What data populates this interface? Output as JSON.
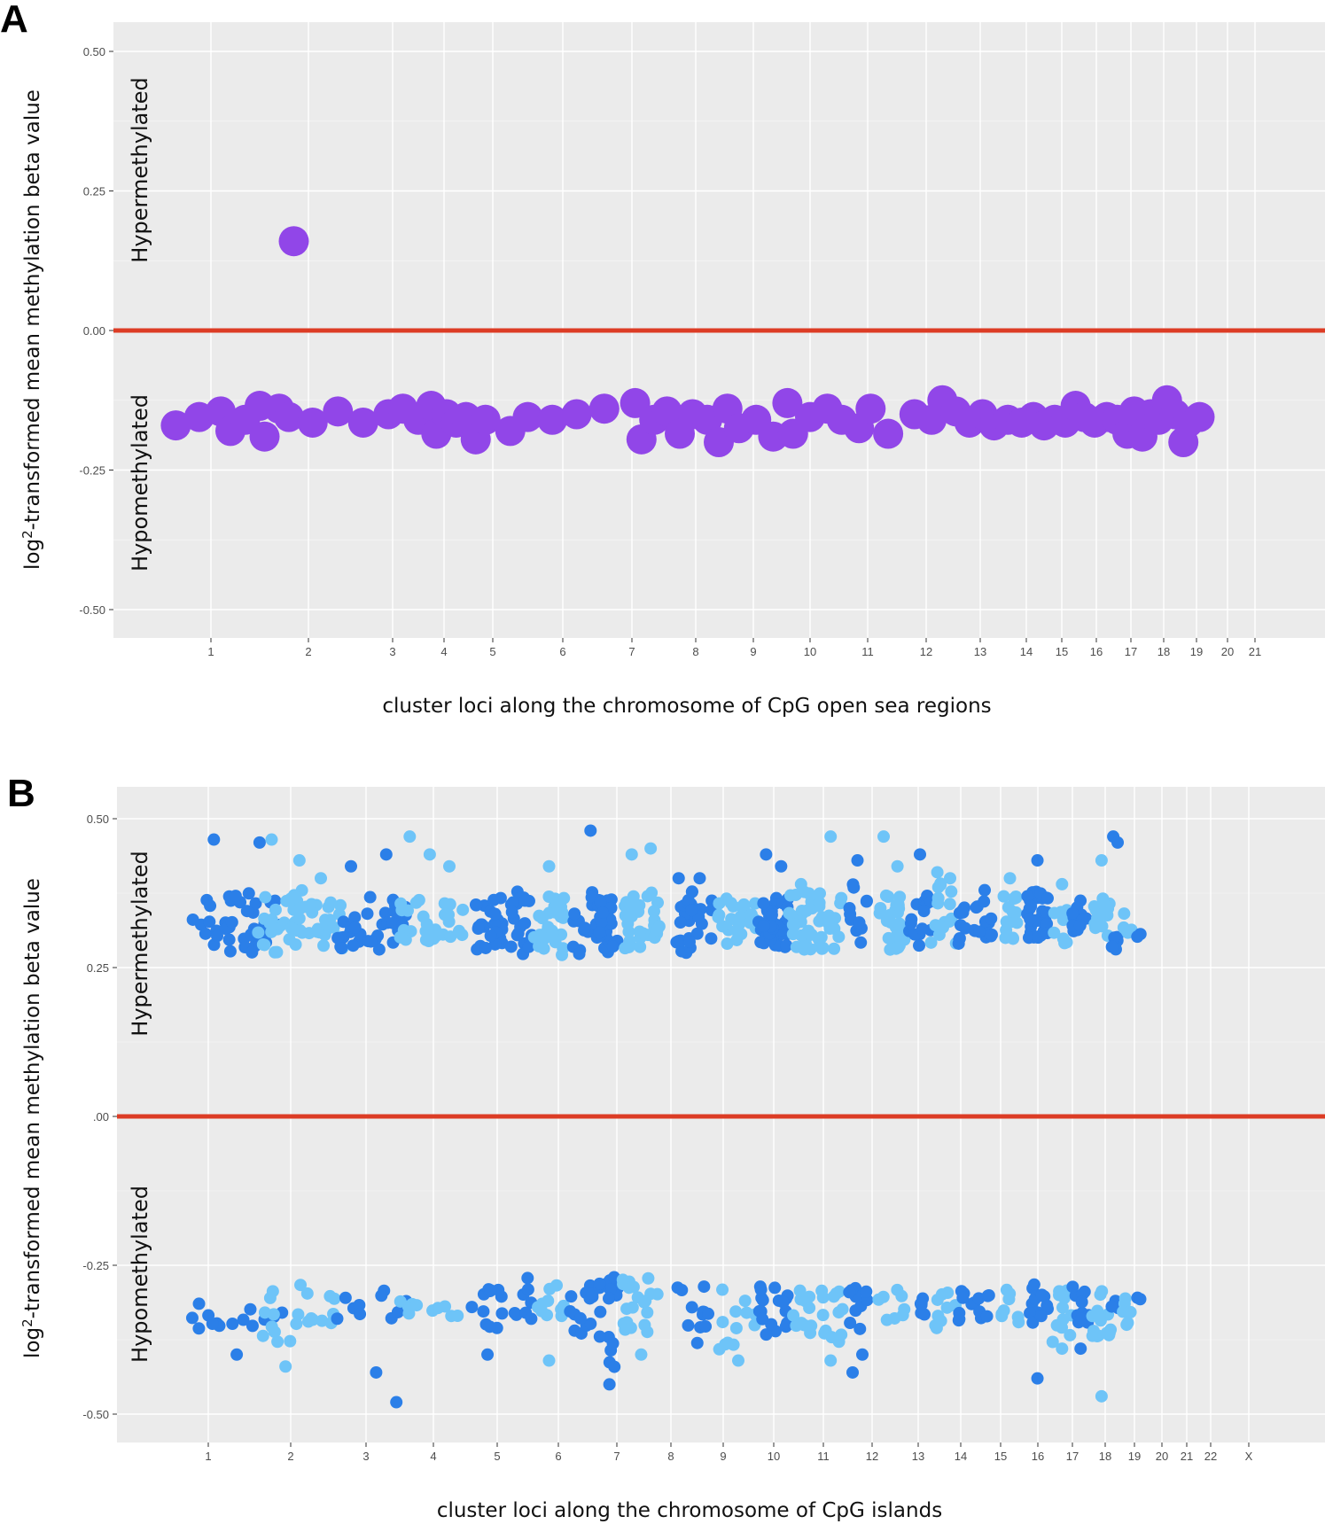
{
  "chart_data": [
    {
      "panel": "A",
      "type": "scatter",
      "xlabel": "cluster loci along the chromosome of CpG open sea regions",
      "ylabel_prefix": "log",
      "ylabel_sup": "2",
      "ylabel_rest": "-transformed mean methylation beta value",
      "ylim": [
        -0.57,
        0.55
      ],
      "yticks": [
        0.5,
        0.25,
        0.0,
        -0.25,
        -0.5
      ],
      "ytick_labels": [
        "0.50",
        "0.25",
        "0.00",
        "-0.25",
        "-0.50"
      ],
      "xticks": [
        "1",
        "2",
        "3",
        "4",
        "5",
        "6",
        "7",
        "8",
        "9",
        "10",
        "11",
        "12",
        "13",
        "14",
        "15",
        "16",
        "17",
        "18",
        "19",
        "20",
        "21"
      ],
      "region_labels": {
        "hyper": "Hypermethylated",
        "hypo": "Hypomethylated"
      },
      "reference_line": 0.0,
      "point_color": "#9146e8",
      "line_color": "#dc3c25",
      "points": [
        {
          "x": 1.85,
          "y": 0.16
        },
        {
          "x": 0.55,
          "y": -0.17
        },
        {
          "x": 0.85,
          "y": -0.155
        },
        {
          "x": 1.1,
          "y": -0.145
        },
        {
          "x": 1.2,
          "y": -0.18
        },
        {
          "x": 1.35,
          "y": -0.16
        },
        {
          "x": 1.5,
          "y": -0.135
        },
        {
          "x": 1.55,
          "y": -0.19
        },
        {
          "x": 1.7,
          "y": -0.14
        },
        {
          "x": 1.8,
          "y": -0.155
        },
        {
          "x": 2.05,
          "y": -0.165
        },
        {
          "x": 2.35,
          "y": -0.145
        },
        {
          "x": 2.65,
          "y": -0.165
        },
        {
          "x": 2.95,
          "y": -0.15
        },
        {
          "x": 3.2,
          "y": -0.14
        },
        {
          "x": 3.5,
          "y": -0.16
        },
        {
          "x": 3.75,
          "y": -0.135
        },
        {
          "x": 3.85,
          "y": -0.185
        },
        {
          "x": 4.05,
          "y": -0.15
        },
        {
          "x": 4.25,
          "y": -0.165
        },
        {
          "x": 4.45,
          "y": -0.155
        },
        {
          "x": 4.65,
          "y": -0.195
        },
        {
          "x": 4.85,
          "y": -0.16
        },
        {
          "x": 5.25,
          "y": -0.18
        },
        {
          "x": 5.5,
          "y": -0.155
        },
        {
          "x": 5.85,
          "y": -0.16
        },
        {
          "x": 6.2,
          "y": -0.15
        },
        {
          "x": 6.6,
          "y": -0.14
        },
        {
          "x": 7.05,
          "y": -0.13
        },
        {
          "x": 7.15,
          "y": -0.195
        },
        {
          "x": 7.35,
          "y": -0.16
        },
        {
          "x": 7.55,
          "y": -0.145
        },
        {
          "x": 7.75,
          "y": -0.185
        },
        {
          "x": 7.95,
          "y": -0.15
        },
        {
          "x": 8.2,
          "y": -0.16
        },
        {
          "x": 8.4,
          "y": -0.2
        },
        {
          "x": 8.55,
          "y": -0.14
        },
        {
          "x": 8.75,
          "y": -0.175
        },
        {
          "x": 9.05,
          "y": -0.16
        },
        {
          "x": 9.35,
          "y": -0.19
        },
        {
          "x": 9.6,
          "y": -0.13
        },
        {
          "x": 9.7,
          "y": -0.185
        },
        {
          "x": 10.0,
          "y": -0.155
        },
        {
          "x": 10.3,
          "y": -0.14
        },
        {
          "x": 10.55,
          "y": -0.16
        },
        {
          "x": 10.85,
          "y": -0.175
        },
        {
          "x": 11.05,
          "y": -0.14
        },
        {
          "x": 11.35,
          "y": -0.185
        },
        {
          "x": 11.8,
          "y": -0.15
        },
        {
          "x": 12.1,
          "y": -0.16
        },
        {
          "x": 12.3,
          "y": -0.125
        },
        {
          "x": 12.55,
          "y": -0.145
        },
        {
          "x": 12.8,
          "y": -0.165
        },
        {
          "x": 13.05,
          "y": -0.15
        },
        {
          "x": 13.3,
          "y": -0.17
        },
        {
          "x": 13.6,
          "y": -0.16
        },
        {
          "x": 13.9,
          "y": -0.165
        },
        {
          "x": 14.2,
          "y": -0.155
        },
        {
          "x": 14.5,
          "y": -0.17
        },
        {
          "x": 14.8,
          "y": -0.16
        },
        {
          "x": 15.1,
          "y": -0.165
        },
        {
          "x": 15.4,
          "y": -0.135
        },
        {
          "x": 15.65,
          "y": -0.155
        },
        {
          "x": 15.95,
          "y": -0.165
        },
        {
          "x": 16.3,
          "y": -0.155
        },
        {
          "x": 16.6,
          "y": -0.16
        },
        {
          "x": 16.9,
          "y": -0.185
        },
        {
          "x": 17.1,
          "y": -0.145
        },
        {
          "x": 17.35,
          "y": -0.19
        },
        {
          "x": 17.6,
          "y": -0.15
        },
        {
          "x": 17.85,
          "y": -0.16
        },
        {
          "x": 18.1,
          "y": -0.125
        },
        {
          "x": 18.35,
          "y": -0.15
        },
        {
          "x": 18.6,
          "y": -0.2
        },
        {
          "x": 18.75,
          "y": -0.165
        },
        {
          "x": 19.1,
          "y": -0.155
        }
      ]
    },
    {
      "panel": "B",
      "type": "scatter",
      "xlabel": "cluster loci along the chromosome of CpG islands",
      "ylabel_prefix": "log",
      "ylabel_sup": "2",
      "ylabel_rest": "-transformed mean methylation beta value",
      "ylim": [
        -0.55,
        0.55
      ],
      "yticks": [
        0.5,
        0.25,
        0.0,
        -0.25,
        -0.5
      ],
      "ytick_labels": [
        "0.50",
        "0.25",
        ".00",
        "-0.25",
        "-0.50"
      ],
      "xticks": [
        "1",
        "2",
        "3",
        "4",
        "5",
        "6",
        "7",
        "8",
        "9",
        "10",
        "11",
        "12",
        "13",
        "14",
        "15",
        "16",
        "17",
        "18",
        "19",
        "20",
        "21",
        "22",
        "X"
      ],
      "region_labels": {
        "hyper": "Hypermethylated",
        "hypo": "Hypomethylated"
      },
      "reference_line": 0.0,
      "series_colors": [
        "#2b7fe8",
        "#6ec4f8"
      ],
      "line_color": "#dc3c25",
      "clusters": [
        {
          "x": 0.7,
          "width": 1.2,
          "color": 0,
          "hyper": [
            0.275,
            0.375
          ],
          "hypo": [
            -0.3,
            -0.36
          ],
          "nHyper": 42,
          "nHypo": 14,
          "outHyper": [
            0.465,
            0.46
          ],
          "outHypo": [
            -0.4
          ]
        },
        {
          "x": 1.6,
          "width": 0.7,
          "color": 1,
          "hyper": [
            0.275,
            0.38
          ],
          "hypo": [
            -0.28,
            -0.38
          ],
          "nHyper": 30,
          "nHypo": 12,
          "outHyper": [
            0.465,
            0.43
          ],
          "outHypo": [
            -0.42
          ]
        },
        {
          "x": 2.1,
          "width": 0.6,
          "color": 1,
          "hyper": [
            0.28,
            0.36
          ],
          "hypo": [
            -0.29,
            -0.35
          ],
          "nHyper": 22,
          "nHypo": 10,
          "outHyper": [
            0.4
          ],
          "outHypo": []
        },
        {
          "x": 2.6,
          "width": 0.4,
          "color": 0,
          "hyper": [
            0.28,
            0.34
          ],
          "hypo": [
            -0.3,
            -0.34
          ],
          "nHyper": 12,
          "nHypo": 5,
          "outHyper": [
            0.42
          ],
          "outHypo": []
        },
        {
          "x": 3.0,
          "width": 0.6,
          "color": 0,
          "hyper": [
            0.28,
            0.37
          ],
          "hypo": [
            -0.29,
            -0.34
          ],
          "nHyper": 22,
          "nHypo": 6,
          "outHyper": [
            0.44
          ],
          "outHypo": [
            -0.43,
            -0.48
          ]
        },
        {
          "x": 3.5,
          "width": 0.6,
          "color": 1,
          "hyper": [
            0.29,
            0.37
          ],
          "hypo": [
            -0.3,
            -0.34
          ],
          "nHyper": 16,
          "nHypo": 6,
          "outHyper": [
            0.47,
            0.44
          ],
          "outHypo": []
        },
        {
          "x": 4.0,
          "width": 0.5,
          "color": 1,
          "hyper": [
            0.3,
            0.36
          ],
          "hypo": [
            -0.3,
            -0.34
          ],
          "nHyper": 12,
          "nHypo": 4,
          "outHyper": [
            0.42
          ],
          "outHypo": []
        },
        {
          "x": 4.6,
          "width": 0.5,
          "color": 0,
          "hyper": [
            0.28,
            0.37
          ],
          "hypo": [
            -0.29,
            -0.37
          ],
          "nHyper": 26,
          "nHypo": 12,
          "outHyper": [],
          "outHypo": [
            -0.4
          ]
        },
        {
          "x": 5.2,
          "width": 0.4,
          "color": 0,
          "hyper": [
            0.27,
            0.38
          ],
          "hypo": [
            -0.27,
            -0.34
          ],
          "nHyper": 20,
          "nHypo": 8,
          "outHyper": [],
          "outHypo": []
        },
        {
          "x": 5.6,
          "width": 0.5,
          "color": 1,
          "hyper": [
            0.27,
            0.37
          ],
          "hypo": [
            -0.28,
            -0.34
          ],
          "nHyper": 28,
          "nHypo": 10,
          "outHyper": [
            0.42
          ],
          "outHypo": [
            -0.41
          ]
        },
        {
          "x": 6.2,
          "width": 0.7,
          "color": 0,
          "hyper": [
            0.27,
            0.38
          ],
          "hypo": [
            -0.28,
            -0.38
          ],
          "nHyper": 32,
          "nHypo": 14,
          "outHyper": [
            0.48
          ],
          "outHypo": []
        },
        {
          "x": 6.7,
          "width": 0.35,
          "color": 0,
          "hyper": [
            0.28,
            0.37
          ],
          "hypo": [
            -0.27,
            -0.44
          ],
          "nHyper": 14,
          "nHypo": 16,
          "outHyper": [],
          "outHypo": [
            -0.45
          ]
        },
        {
          "x": 7.1,
          "width": 0.7,
          "color": 1,
          "hyper": [
            0.28,
            0.38
          ],
          "hypo": [
            -0.27,
            -0.37
          ],
          "nHyper": 34,
          "nHypo": 20,
          "outHyper": [
            0.44,
            0.45
          ],
          "outHypo": [
            -0.4
          ]
        },
        {
          "x": 7.9,
          "width": 0.5,
          "color": 0,
          "hyper": [
            0.27,
            0.36
          ],
          "hypo": [
            -0.28,
            -0.3
          ],
          "nHyper": 14,
          "nHypo": 2,
          "outHyper": [
            0.4
          ],
          "outHypo": []
        },
        {
          "x": 8.3,
          "width": 0.5,
          "color": 0,
          "hyper": [
            0.29,
            0.38
          ],
          "hypo": [
            -0.28,
            -0.39
          ],
          "nHyper": 14,
          "nHypo": 10,
          "outHyper": [
            0.4
          ],
          "outHypo": []
        },
        {
          "x": 8.9,
          "width": 0.8,
          "color": 1,
          "hyper": [
            0.29,
            0.37
          ],
          "hypo": [
            -0.28,
            -0.4
          ],
          "nHyper": 26,
          "nHypo": 12,
          "outHyper": [],
          "outHypo": [
            -0.41
          ]
        },
        {
          "x": 9.7,
          "width": 0.6,
          "color": 0,
          "hyper": [
            0.28,
            0.37
          ],
          "hypo": [
            -0.28,
            -0.37
          ],
          "nHyper": 36,
          "nHypo": 18,
          "outHyper": [
            0.44,
            0.42
          ],
          "outHypo": []
        },
        {
          "x": 10.3,
          "width": 0.5,
          "color": 1,
          "hyper": [
            0.28,
            0.38
          ],
          "hypo": [
            -0.29,
            -0.37
          ],
          "nHyper": 26,
          "nHypo": 12,
          "outHyper": [
            0.39
          ],
          "outHypo": []
        },
        {
          "x": 10.9,
          "width": 0.5,
          "color": 1,
          "hyper": [
            0.28,
            0.38
          ],
          "hypo": [
            -0.29,
            -0.38
          ],
          "nHyper": 22,
          "nHypo": 14,
          "outHyper": [
            0.47
          ],
          "outHypo": [
            -0.41
          ]
        },
        {
          "x": 11.5,
          "width": 0.4,
          "color": 0,
          "hyper": [
            0.28,
            0.39
          ],
          "hypo": [
            -0.28,
            -0.36
          ],
          "nHyper": 12,
          "nHypo": 10,
          "outHyper": [
            0.43
          ],
          "outHypo": [
            -0.43,
            -0.4
          ]
        },
        {
          "x": 12.1,
          "width": 0.6,
          "color": 1,
          "hyper": [
            0.28,
            0.38
          ],
          "hypo": [
            -0.29,
            -0.35
          ],
          "nHyper": 28,
          "nHypo": 8,
          "outHyper": [
            0.47,
            0.42
          ],
          "outHypo": []
        },
        {
          "x": 12.8,
          "width": 0.5,
          "color": 0,
          "hyper": [
            0.28,
            0.38
          ],
          "hypo": [
            -0.29,
            -0.35
          ],
          "nHyper": 14,
          "nHypo": 6,
          "outHyper": [
            0.44
          ],
          "outHypo": []
        },
        {
          "x": 13.3,
          "width": 0.6,
          "color": 1,
          "hyper": [
            0.29,
            0.4
          ],
          "hypo": [
            -0.29,
            -0.37
          ],
          "nHyper": 16,
          "nHypo": 10,
          "outHyper": [
            0.41,
            0.4
          ],
          "outHypo": []
        },
        {
          "x": 13.9,
          "width": 0.5,
          "color": 0,
          "hyper": [
            0.29,
            0.36
          ],
          "hypo": [
            -0.29,
            -0.35
          ],
          "nHyper": 12,
          "nHypo": 8,
          "outHyper": [],
          "outHypo": []
        },
        {
          "x": 14.4,
          "width": 0.4,
          "color": 0,
          "hyper": [
            0.3,
            0.37
          ],
          "hypo": [
            -0.3,
            -0.34
          ],
          "nHyper": 10,
          "nHypo": 6,
          "outHyper": [
            0.38
          ],
          "outHypo": []
        },
        {
          "x": 15.0,
          "width": 0.5,
          "color": 1,
          "hyper": [
            0.29,
            0.37
          ],
          "hypo": [
            -0.29,
            -0.35
          ],
          "nHyper": 16,
          "nHypo": 8,
          "outHyper": [
            0.4
          ],
          "outHypo": []
        },
        {
          "x": 15.7,
          "width": 0.6,
          "color": 0,
          "hyper": [
            0.3,
            0.38
          ],
          "hypo": [
            -0.28,
            -0.35
          ],
          "nHyper": 30,
          "nHypo": 12,
          "outHyper": [
            0.43
          ],
          "outHypo": [
            -0.44
          ]
        },
        {
          "x": 16.4,
          "width": 0.6,
          "color": 1,
          "hyper": [
            0.29,
            0.35
          ],
          "hypo": [
            -0.29,
            -0.38
          ],
          "nHyper": 8,
          "nHypo": 12,
          "outHyper": [
            0.39
          ],
          "outHypo": [
            -0.39
          ]
        },
        {
          "x": 17.0,
          "width": 0.5,
          "color": 0,
          "hyper": [
            0.3,
            0.37
          ],
          "hypo": [
            -0.28,
            -0.35
          ],
          "nHyper": 14,
          "nHypo": 12,
          "outHyper": [],
          "outHypo": [
            -0.39
          ]
        },
        {
          "x": 17.6,
          "width": 0.6,
          "color": 1,
          "hyper": [
            0.3,
            0.37
          ],
          "hypo": [
            -0.29,
            -0.38
          ],
          "nHyper": 16,
          "nHypo": 18,
          "outHyper": [
            0.43
          ],
          "outHypo": [
            -0.47
          ]
        },
        {
          "x": 18.2,
          "width": 0.3,
          "color": 0,
          "hyper": [
            0.28,
            0.32
          ],
          "hypo": [
            -0.3,
            -0.33
          ],
          "nHyper": 6,
          "nHypo": 5,
          "outHyper": [
            0.47,
            0.46
          ],
          "outHypo": []
        },
        {
          "x": 18.6,
          "width": 0.3,
          "color": 1,
          "hyper": [
            0.3,
            0.35
          ],
          "hypo": [
            -0.29,
            -0.35
          ],
          "nHyper": 6,
          "nHypo": 6,
          "outHyper": [],
          "outHypo": []
        },
        {
          "x": 19.1,
          "width": 0.1,
          "color": 0,
          "hyper": [
            0.3,
            0.31
          ],
          "hypo": [
            -0.3,
            -0.31
          ],
          "nHyper": 2,
          "nHypo": 2,
          "outHyper": [],
          "outHypo": []
        }
      ]
    }
  ]
}
